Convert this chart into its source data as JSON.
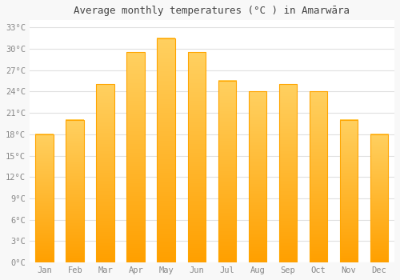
{
  "title": "Average monthly temperatures (°C ) in Amarwāra",
  "months": [
    "Jan",
    "Feb",
    "Mar",
    "Apr",
    "May",
    "Jun",
    "Jul",
    "Aug",
    "Sep",
    "Oct",
    "Nov",
    "Dec"
  ],
  "values": [
    18,
    20,
    25,
    29.5,
    31.5,
    29.5,
    25.5,
    24,
    25,
    24,
    20,
    18
  ],
  "bar_color_top": "#FFD060",
  "bar_color_bottom": "#FFA000",
  "bar_edge_color": "#FFA500",
  "background_color": "#F8F8F8",
  "plot_bg_color": "#FFFFFF",
  "grid_color": "#E0E0E0",
  "tick_label_color": "#888888",
  "title_color": "#444444",
  "ylim": [
    0,
    34
  ],
  "yticks": [
    0,
    3,
    6,
    9,
    12,
    15,
    18,
    21,
    24,
    27,
    30,
    33
  ],
  "figsize": [
    5.0,
    3.5
  ],
  "dpi": 100,
  "title_fontsize": 9,
  "tick_fontsize": 7.5,
  "bar_width": 0.6
}
